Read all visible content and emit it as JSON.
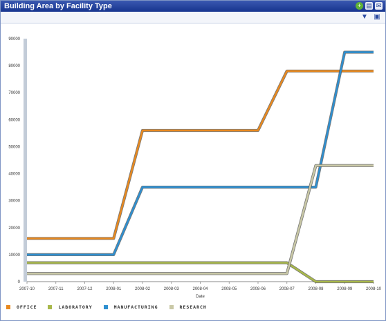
{
  "window": {
    "title": "Building Area by Facility Type"
  },
  "titlebar_icons": [
    "add-icon",
    "print-icon",
    "email-icon"
  ],
  "toolbar_icons": [
    "filter-icon",
    "export-icon"
  ],
  "chart_data": {
    "type": "line",
    "xlabel": "Date",
    "ylabel": "",
    "ylim": [
      0,
      90000
    ],
    "yticks": [
      0,
      10000,
      20000,
      30000,
      40000,
      50000,
      60000,
      70000,
      80000,
      90000
    ],
    "categories": [
      "2007-10",
      "2007-11",
      "2007-12",
      "2008-01",
      "2008-02",
      "2008-03",
      "2008-04",
      "2008-05",
      "2008-06",
      "2008-07",
      "2008-08",
      "2008-09",
      "2008-10"
    ],
    "grid": false,
    "legend_placement": "bottom-left",
    "series": [
      {
        "name": "OFFICE",
        "color": "#e8891f",
        "values": [
          16000,
          16000,
          16000,
          16000,
          56000,
          56000,
          56000,
          56000,
          56000,
          78000,
          78000,
          78000,
          78000
        ]
      },
      {
        "name": "LABORATORY",
        "color": "#a8b84a",
        "values": [
          7000,
          7000,
          7000,
          7000,
          7000,
          7000,
          7000,
          7000,
          7000,
          7000,
          0,
          0,
          0
        ]
      },
      {
        "name": "MANUFACTURING",
        "color": "#2e8fd0",
        "values": [
          10000,
          10000,
          10000,
          10000,
          35000,
          35000,
          35000,
          35000,
          35000,
          35000,
          35000,
          85000,
          85000
        ]
      },
      {
        "name": "RESEARCH",
        "color": "#c9c8a6",
        "values": [
          3000,
          3000,
          3000,
          3000,
          3000,
          3000,
          3000,
          3000,
          3000,
          3000,
          43000,
          43000,
          43000
        ]
      }
    ]
  }
}
